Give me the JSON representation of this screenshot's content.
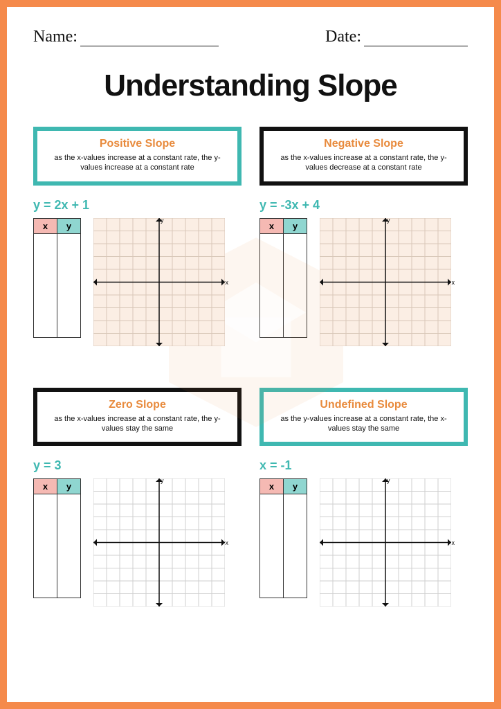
{
  "header": {
    "name_label": "Name:",
    "date_label": "Date:"
  },
  "title": "Understanding Slope",
  "colors": {
    "border": "#f58a4b",
    "teal": "#3fb8b1",
    "black": "#111111",
    "orange": "#e88a3c",
    "x_header": "#f5b9b3",
    "y_header": "#8fd6d0",
    "grid_fill": "#fbeee4",
    "grid_line": "#d8c7b8"
  },
  "table_headers": {
    "x": "x",
    "y": "y"
  },
  "axis_labels": {
    "x": "x",
    "y": "y"
  },
  "graph": {
    "width": 190,
    "height": 185,
    "grid_divisions": 10,
    "arrow_size": 5
  },
  "sections": [
    {
      "banner_color": "teal",
      "title": "Positive Slope",
      "desc": "as the x-values increase at a constant rate, the y-values increase at a constant rate",
      "equation": "y = 2x + 1",
      "grid_tint": true
    },
    {
      "banner_color": "black",
      "title": "Negative Slope",
      "desc": "as the x-values increase at a constant rate, the y-values decrease at a constant rate",
      "equation": "y = -3x + 4",
      "grid_tint": true
    },
    {
      "banner_color": "black",
      "title": "Zero Slope",
      "desc": "as the x-values increase at a constant rate, the y-values stay the same",
      "equation": "y = 3",
      "grid_tint": false
    },
    {
      "banner_color": "teal",
      "title": "Undefined Slope",
      "desc": "as the y-values increase at a constant rate, the x-values stay the same",
      "equation": "x = -1",
      "grid_tint": false
    }
  ]
}
